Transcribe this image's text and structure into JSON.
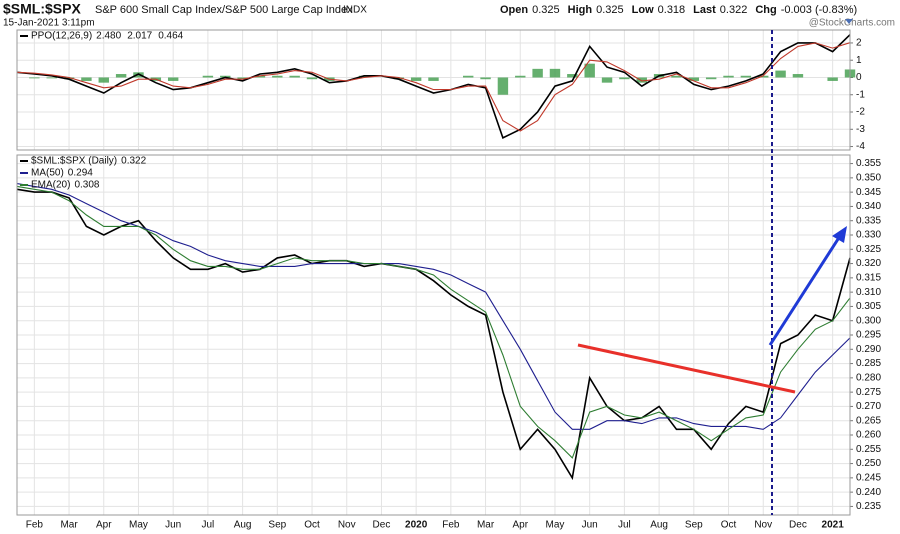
{
  "header": {
    "symbol": "$SML:$SPX",
    "description": "S&P 600 Small Cap Index/S&P 500 Large Cap Index",
    "exchange": "INDX",
    "timestamp": "15-Jan-2021 3:11pm",
    "quote": [
      {
        "label": "Open",
        "value": 0.325
      },
      {
        "label": "High",
        "value": 0.325
      },
      {
        "label": "Low",
        "value": 0.318
      },
      {
        "label": "Last",
        "value": 0.322
      }
    ],
    "change_label": "Chg",
    "change": "-0.003 (-0.83%)",
    "watermark": "@StockCharts.com"
  },
  "chart_data": [
    {
      "type": "line",
      "grid": true,
      "legend": "top-left",
      "ylim": [
        -4.2,
        2.75
      ],
      "yticks": [
        2,
        1,
        0,
        -1,
        -2,
        -3,
        -4
      ],
      "series": [
        {
          "name": "PPO(12,26,9)",
          "color": "#000000",
          "last": {
            "value": 2.48,
            "label": "2.480"
          },
          "values": [
            0.3,
            0.2,
            0.1,
            -0.1,
            -0.5,
            -0.9,
            -0.3,
            0.2,
            -0.3,
            -0.7,
            -0.6,
            -0.3,
            0,
            -0.2,
            0.2,
            0.3,
            0.5,
            0.2,
            -0.3,
            -0.2,
            0.1,
            0.1,
            -0.1,
            -0.5,
            -0.9,
            -0.7,
            -0.4,
            -0.6,
            -3.5,
            -3.0,
            -2.0,
            -0.5,
            -0.2,
            1.8,
            0.6,
            0.3,
            -0.5,
            0.1,
            0.3,
            -0.4,
            -0.7,
            -0.5,
            -0.2,
            0.2,
            1.5,
            2.0,
            2.0,
            1.5,
            2.48
          ]
        },
        {
          "color": "#c0392b",
          "last": {
            "value": 2.017,
            "label": "2.017"
          },
          "values": [
            0.3,
            0.25,
            0.15,
            0,
            -0.3,
            -0.6,
            -0.5,
            -0.1,
            -0.1,
            -0.5,
            -0.6,
            -0.4,
            -0.1,
            -0.1,
            0.1,
            0.2,
            0.4,
            0.3,
            -0.1,
            -0.2,
            0,
            0.1,
            0,
            -0.3,
            -0.7,
            -0.7,
            -0.5,
            -0.5,
            -2.5,
            -3.1,
            -2.5,
            -1.0,
            -0.4,
            1.0,
            0.9,
            0.4,
            -0.2,
            -0.1,
            0.2,
            -0.2,
            -0.6,
            -0.6,
            -0.3,
            0.1,
            1.1,
            1.8,
            2.0,
            1.7,
            2.017
          ]
        },
        {
          "type": "bar",
          "color": "#3f9b4a",
          "last": {
            "value": 0.464,
            "label": "0.464"
          },
          "values": [
            0,
            -0.05,
            -0.05,
            -0.1,
            -0.2,
            -0.3,
            0.2,
            0.3,
            -0.2,
            -0.2,
            0,
            0.1,
            0.1,
            -0.1,
            0.1,
            0.1,
            0.1,
            -0.1,
            -0.2,
            0,
            0.1,
            0,
            -0.1,
            -0.2,
            -0.2,
            0,
            0.1,
            -0.1,
            -1.0,
            0.1,
            0.5,
            0.5,
            0.2,
            0.8,
            -0.3,
            -0.1,
            -0.3,
            0.2,
            0.1,
            -0.2,
            -0.1,
            0.1,
            0.1,
            0.1,
            0.4,
            0.2,
            0,
            -0.2,
            0.464
          ]
        }
      ]
    },
    {
      "type": "line",
      "grid": true,
      "legend": "top-left",
      "categories": [
        null,
        "Feb",
        null,
        "Mar",
        null,
        "Apr",
        null,
        "May",
        null,
        "Jun",
        null,
        "Jul",
        null,
        "Aug",
        null,
        "Sep",
        null,
        "Oct",
        null,
        "Nov",
        null,
        "Dec",
        null,
        "2020",
        null,
        "Feb",
        null,
        "Mar",
        null,
        "Apr",
        null,
        "May",
        null,
        "Jun",
        null,
        "Jul",
        null,
        "Aug",
        null,
        "Sep",
        null,
        "Oct",
        null,
        "Nov",
        null,
        "Dec",
        null,
        "2021",
        null
      ],
      "ylim": [
        0.232,
        0.358
      ],
      "yticks": [
        0.355,
        {
          "value": 0.35,
          "label": "0.350"
        },
        0.345,
        {
          "value": 0.34,
          "label": "0.340"
        },
        0.335,
        {
          "value": 0.33,
          "label": "0.330"
        },
        0.325,
        {
          "value": 0.32,
          "label": "0.320"
        },
        0.315,
        {
          "value": 0.31,
          "label": "0.310"
        },
        0.305,
        {
          "value": 0.3,
          "label": "0.300"
        },
        0.295,
        {
          "value": 0.29,
          "label": "0.290"
        },
        0.285,
        {
          "value": 0.28,
          "label": "0.280"
        },
        0.275,
        {
          "value": 0.27,
          "label": "0.270"
        },
        0.265,
        {
          "value": 0.26,
          "label": "0.260"
        },
        0.255,
        {
          "value": 0.25,
          "label": "0.250"
        },
        0.245,
        {
          "value": 0.24,
          "label": "0.240"
        },
        0.235
      ],
      "series": [
        {
          "name": "$SML:$SPX (Daily)",
          "color": "#000000",
          "last": 0.322,
          "values": [
            0.346,
            0.345,
            0.345,
            0.343,
            0.333,
            0.33,
            0.333,
            0.335,
            0.328,
            0.322,
            0.318,
            0.318,
            0.32,
            0.317,
            0.318,
            0.322,
            0.323,
            0.32,
            0.321,
            0.321,
            0.319,
            0.32,
            0.319,
            0.318,
            0.314,
            0.309,
            0.305,
            0.302,
            0.275,
            0.255,
            0.262,
            0.255,
            0.245,
            0.28,
            0.27,
            0.265,
            0.266,
            0.27,
            0.262,
            0.262,
            0.255,
            0.264,
            0.27,
            0.268,
            0.292,
            0.295,
            0.302,
            0.3,
            0.322
          ]
        },
        {
          "name": "MA(50)",
          "color": "#1f1f8f",
          "last": 0.294,
          "values": [
            0.348,
            0.347,
            0.346,
            0.344,
            0.341,
            0.338,
            0.335,
            0.333,
            0.331,
            0.328,
            0.326,
            0.323,
            0.321,
            0.32,
            0.319,
            0.319,
            0.319,
            0.32,
            0.32,
            0.32,
            0.32,
            0.32,
            0.32,
            0.319,
            0.318,
            0.316,
            0.313,
            0.31,
            0.3,
            0.29,
            0.279,
            0.268,
            0.262,
            0.262,
            0.265,
            0.265,
            0.264,
            0.266,
            0.266,
            0.264,
            0.263,
            0.263,
            0.263,
            0.262,
            0.266,
            0.274,
            0.282,
            0.288,
            0.294
          ]
        },
        {
          "name": "EMA(20)",
          "color": "#2e7d32",
          "last": 0.308,
          "values": [
            0.347,
            0.346,
            0.345,
            0.342,
            0.337,
            0.333,
            0.333,
            0.333,
            0.33,
            0.325,
            0.321,
            0.319,
            0.319,
            0.318,
            0.318,
            0.32,
            0.322,
            0.321,
            0.321,
            0.321,
            0.32,
            0.32,
            0.319,
            0.318,
            0.316,
            0.311,
            0.307,
            0.303,
            0.288,
            0.27,
            0.263,
            0.258,
            0.252,
            0.268,
            0.27,
            0.267,
            0.266,
            0.268,
            0.265,
            0.262,
            0.258,
            0.262,
            0.266,
            0.267,
            0.282,
            0.29,
            0.297,
            0.3,
            0.308
          ]
        }
      ]
    }
  ]
}
